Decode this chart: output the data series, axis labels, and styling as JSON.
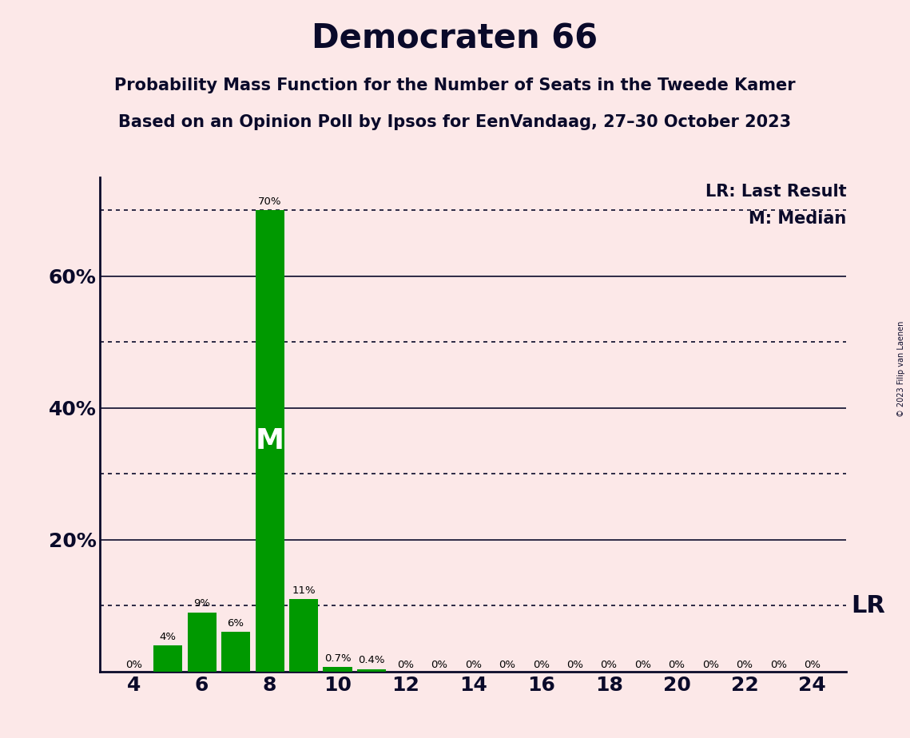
{
  "title": "Democraten 66",
  "subtitle1": "Probability Mass Function for the Number of Seats in the Tweede Kamer",
  "subtitle2": "Based on an Opinion Poll by Ipsos for EenVandaag, 27–30 October 2023",
  "copyright": "© 2023 Filip van Laenen",
  "background_color": "#fce8e8",
  "bar_color": "#009900",
  "seats": [
    4,
    5,
    6,
    7,
    8,
    9,
    10,
    11,
    12,
    13,
    14,
    15,
    16,
    17,
    18,
    19,
    20,
    21,
    22,
    23,
    24
  ],
  "probabilities": [
    0.0,
    4.0,
    9.0,
    6.0,
    70.0,
    11.0,
    0.7,
    0.4,
    0.0,
    0.0,
    0.0,
    0.0,
    0.0,
    0.0,
    0.0,
    0.0,
    0.0,
    0.0,
    0.0,
    0.0,
    0.0
  ],
  "xlim": [
    3,
    25
  ],
  "ylim": [
    0,
    75
  ],
  "xticks": [
    4,
    6,
    8,
    10,
    12,
    14,
    16,
    18,
    20,
    22,
    24
  ],
  "solid_lines": [
    20,
    40,
    60
  ],
  "dotted_lines": [
    10,
    30,
    50,
    70
  ],
  "ytick_positions": [
    20,
    40,
    60
  ],
  "ytick_labels": [
    "20%",
    "40%",
    "60%"
  ],
  "median_seat": 8,
  "lr_line_y": 10.0,
  "legend_lr_text": "LR: Last Result",
  "legend_m_text": "M: Median",
  "lr_label": "LR",
  "m_label": "M",
  "label_fontsize": 9.5,
  "axis_tick_fontsize": 18,
  "legend_fontsize": 15,
  "lr_label_fontsize": 22,
  "title_fontsize": 30,
  "subtitle_fontsize": 15,
  "m_inside_fontsize": 26
}
